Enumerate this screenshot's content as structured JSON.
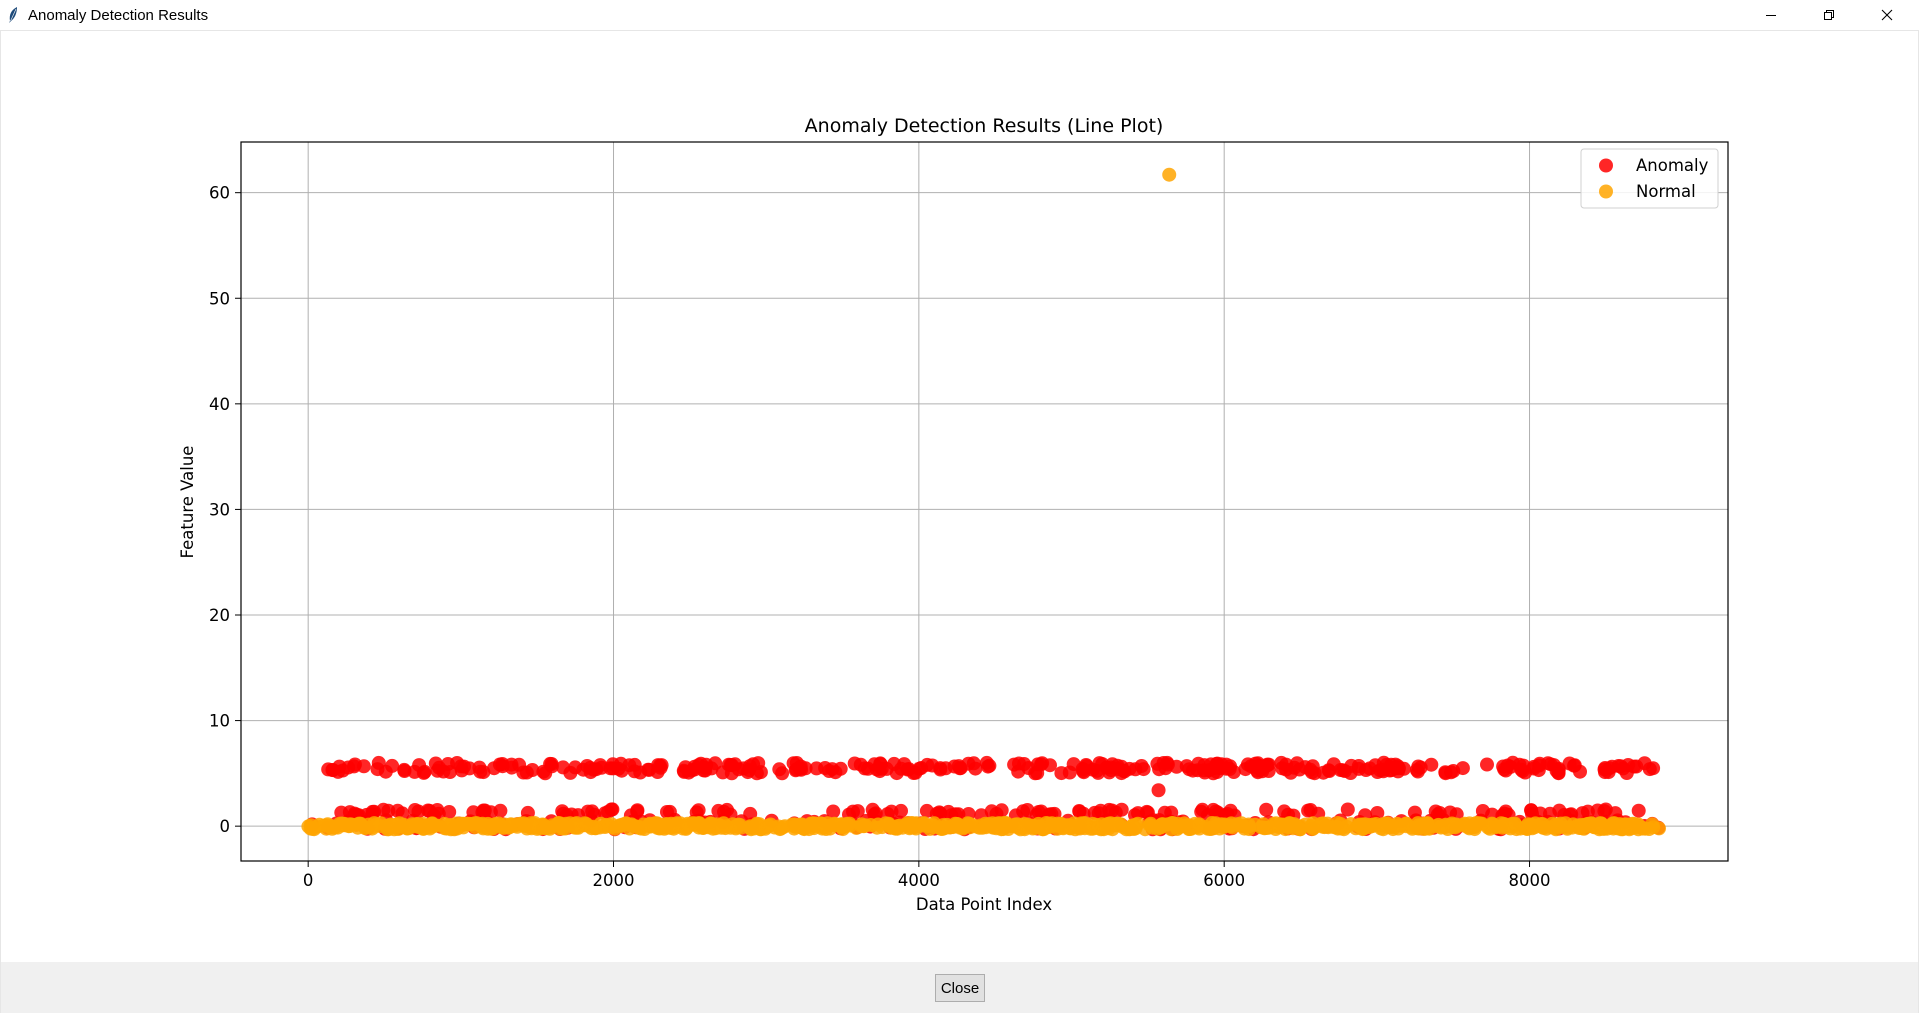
{
  "window": {
    "title": "Anomaly Detection Results",
    "controls": [
      "minimize-icon",
      "restore-icon",
      "close-icon"
    ]
  },
  "chart_data": {
    "type": "scatter",
    "title": "Anomaly Detection Results (Line Plot)",
    "xlabel": "Data Point Index",
    "ylabel": "Feature Value",
    "xlim": [
      -440,
      9300
    ],
    "ylim": [
      -3.3,
      64.8
    ],
    "xticks": [
      0,
      2000,
      4000,
      6000,
      8000
    ],
    "yticks": [
      0,
      10,
      20,
      30,
      40,
      50,
      60
    ],
    "grid": true,
    "legend_position": "top-right",
    "series": [
      {
        "name": "Anomaly",
        "color": "#ff0000",
        "bands": [
          {
            "y_min": 5.0,
            "y_max": 6.0,
            "x_min": 80,
            "x_max": 8850
          },
          {
            "y_min": 1.0,
            "y_max": 1.6,
            "x_min": 200,
            "x_max": 8750
          },
          {
            "y_min": -0.3,
            "y_max": 0.6,
            "x_min": 0,
            "x_max": 8850
          }
        ],
        "points": [
          {
            "x": 5570,
            "y": 3.4
          }
        ]
      },
      {
        "name": "Normal",
        "color": "#ffa500",
        "bands": [
          {
            "y_min": -0.3,
            "y_max": 0.3,
            "x_min": 0,
            "x_max": 8850
          }
        ],
        "points": [
          {
            "x": 5640,
            "y": 61.7
          }
        ]
      }
    ]
  },
  "footer": {
    "close_label": "Close"
  }
}
